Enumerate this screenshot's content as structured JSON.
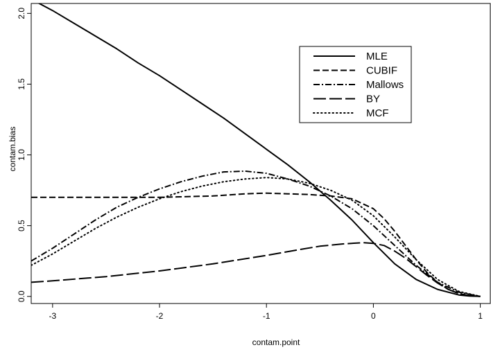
{
  "chart_data": {
    "type": "line",
    "xlabel": "contam.point",
    "ylabel": "contam.bias",
    "xlim": [
      -3.2,
      1.1
    ],
    "ylim": [
      -0.05,
      2.07
    ],
    "xticks": [
      -3,
      -2,
      -1,
      0,
      1
    ],
    "xtick_labels": [
      "-3",
      "-2",
      "-1",
      "0",
      "1"
    ],
    "yticks": [
      0.0,
      0.5,
      1.0,
      1.5,
      2.0
    ],
    "ytick_labels": [
      "0.0",
      "0.5",
      "1.0",
      "1.5",
      "2.0"
    ],
    "legend_position": "top-right",
    "series": [
      {
        "name": "MLE",
        "dash": "solid",
        "x": [
          -3.2,
          -3.0,
          -2.8,
          -2.6,
          -2.4,
          -2.2,
          -2.0,
          -1.8,
          -1.6,
          -1.4,
          -1.2,
          -1.0,
          -0.8,
          -0.6,
          -0.4,
          -0.2,
          0.0,
          0.2,
          0.4,
          0.6,
          0.8,
          0.9,
          1.0
        ],
        "y": [
          2.1,
          2.02,
          1.93,
          1.84,
          1.75,
          1.65,
          1.56,
          1.46,
          1.36,
          1.26,
          1.15,
          1.04,
          0.93,
          0.81,
          0.68,
          0.54,
          0.38,
          0.23,
          0.12,
          0.05,
          0.01,
          0.003,
          0.0
        ]
      },
      {
        "name": "CUBIF",
        "dash": "short-dash",
        "x": [
          -3.2,
          -3.0,
          -2.5,
          -2.0,
          -1.5,
          -1.2,
          -1.0,
          -0.8,
          -0.6,
          -0.4,
          -0.2,
          0.0,
          0.1,
          0.2,
          0.3,
          0.4,
          0.5,
          0.6,
          0.7,
          0.8,
          0.9,
          1.0
        ],
        "y": [
          0.7,
          0.7,
          0.7,
          0.7,
          0.71,
          0.725,
          0.73,
          0.725,
          0.72,
          0.71,
          0.69,
          0.62,
          0.55,
          0.46,
          0.36,
          0.26,
          0.17,
          0.1,
          0.05,
          0.02,
          0.005,
          0.0
        ]
      },
      {
        "name": "Mallows",
        "dash": "dash-dot",
        "x": [
          -3.2,
          -3.0,
          -2.8,
          -2.6,
          -2.4,
          -2.2,
          -2.0,
          -1.8,
          -1.6,
          -1.4,
          -1.2,
          -1.0,
          -0.8,
          -0.6,
          -0.4,
          -0.2,
          0.0,
          0.2,
          0.4,
          0.6,
          0.8,
          1.0
        ],
        "y": [
          0.25,
          0.34,
          0.44,
          0.54,
          0.63,
          0.7,
          0.76,
          0.81,
          0.85,
          0.88,
          0.885,
          0.87,
          0.83,
          0.78,
          0.71,
          0.62,
          0.5,
          0.36,
          0.22,
          0.1,
          0.03,
          0.0
        ]
      },
      {
        "name": "BY",
        "dash": "long-dash",
        "x": [
          -3.2,
          -3.0,
          -2.5,
          -2.0,
          -1.5,
          -1.0,
          -0.7,
          -0.5,
          -0.3,
          -0.1,
          0.0,
          0.1,
          0.2,
          0.3,
          0.4,
          0.5,
          0.6,
          0.7,
          0.8,
          0.9,
          1.0
        ],
        "y": [
          0.1,
          0.11,
          0.14,
          0.18,
          0.23,
          0.29,
          0.33,
          0.355,
          0.37,
          0.38,
          0.375,
          0.36,
          0.32,
          0.27,
          0.21,
          0.15,
          0.095,
          0.05,
          0.02,
          0.005,
          0.0
        ]
      },
      {
        "name": "MCF",
        "dash": "dotted",
        "x": [
          -3.2,
          -3.0,
          -2.8,
          -2.6,
          -2.4,
          -2.2,
          -2.0,
          -1.8,
          -1.6,
          -1.4,
          -1.2,
          -1.0,
          -0.8,
          -0.6,
          -0.4,
          -0.2,
          0.0,
          0.2,
          0.4,
          0.6,
          0.8,
          1.0
        ],
        "y": [
          0.22,
          0.3,
          0.39,
          0.48,
          0.56,
          0.63,
          0.69,
          0.74,
          0.78,
          0.81,
          0.83,
          0.84,
          0.83,
          0.8,
          0.75,
          0.68,
          0.57,
          0.42,
          0.26,
          0.12,
          0.035,
          0.0
        ]
      }
    ]
  }
}
